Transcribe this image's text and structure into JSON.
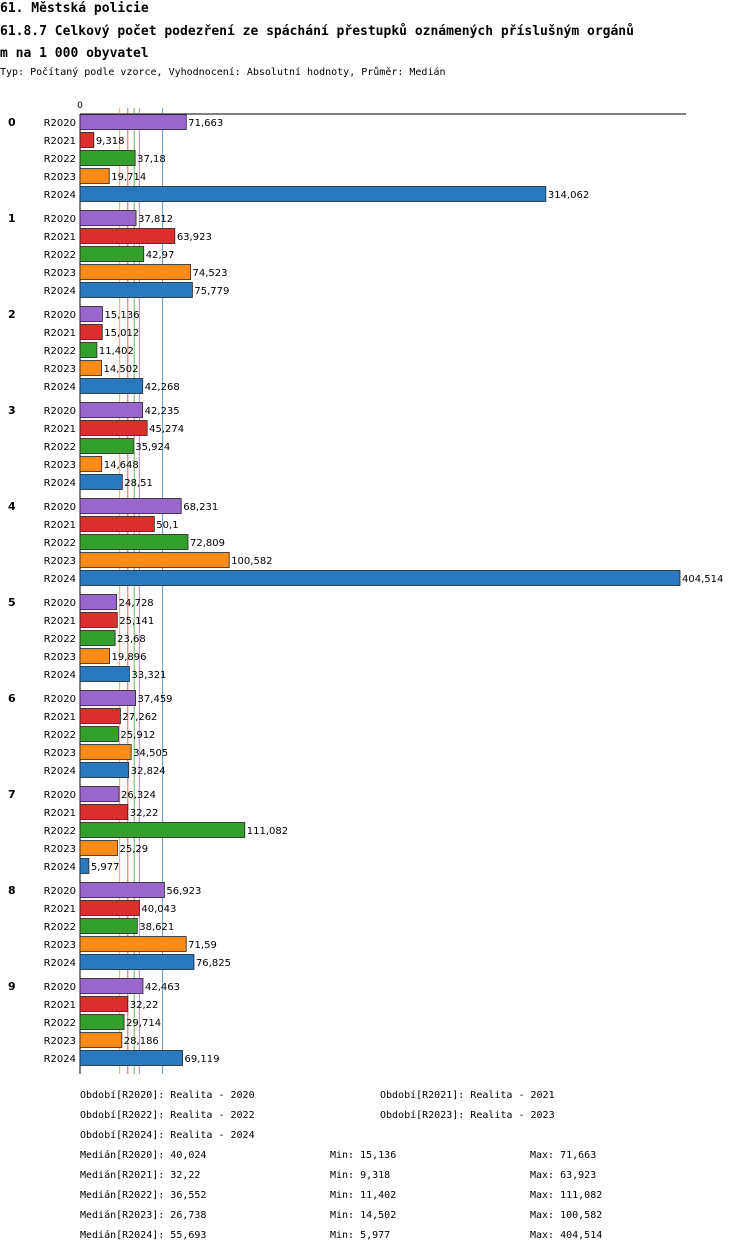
{
  "header": {
    "title": "61. Městská policie",
    "subtitle_line1": "61.8.7 Celkový počet podezření ze spáchání přestupků oznámených příslušným orgánů",
    "subtitle_line2": "m na 1 000 obyvatel",
    "type_line": "Typ: Počítaný podle vzorce, Vyhodnocení: Absolutní hodnoty, Průměr: Medián"
  },
  "chart_data": {
    "type": "bar",
    "orientation": "horizontal",
    "xlim": [
      0,
      404.514
    ],
    "x_tick_labels": [
      "0"
    ],
    "categories": [
      "0",
      "1",
      "2",
      "3",
      "4",
      "5",
      "6",
      "7",
      "8",
      "9"
    ],
    "series": [
      {
        "name": "R2020",
        "color": "#9966cc",
        "values": [
          71.663,
          37.812,
          15.136,
          42.235,
          68.231,
          24.728,
          37.459,
          26.324,
          56.923,
          42.463
        ],
        "labels": [
          "71,663",
          "37,812",
          "15,136",
          "42,235",
          "68,231",
          "24,728",
          "37,459",
          "26,324",
          "56,923",
          "42,463"
        ]
      },
      {
        "name": "R2021",
        "color": "#dd2e2e",
        "values": [
          9.318,
          63.923,
          15.012,
          45.274,
          50.1,
          25.141,
          27.262,
          32.22,
          40.043,
          32.22
        ],
        "labels": [
          "9,318",
          "63,923",
          "15,012",
          "45,274",
          "50,1",
          "25,141",
          "27,262",
          "32,22",
          "40,043",
          "32,22"
        ]
      },
      {
        "name": "R2022",
        "color": "#33a02c",
        "values": [
          37.18,
          42.97,
          11.402,
          35.924,
          72.809,
          23.68,
          25.912,
          111.082,
          38.621,
          29.714
        ],
        "labels": [
          "37,18",
          "42,97",
          "11,402",
          "35,924",
          "72,809",
          "23,68",
          "25,912",
          "111,082",
          "38,621",
          "29,714"
        ]
      },
      {
        "name": "R2023",
        "color": "#ff8c1a",
        "values": [
          19.714,
          74.523,
          14.502,
          14.648,
          100.582,
          19.896,
          34.505,
          25.29,
          71.59,
          28.186
        ],
        "labels": [
          "19,714",
          "74,523",
          "14,502",
          "14,648",
          "100,582",
          "19,896",
          "34,505",
          "25,29",
          "71,59",
          "28,186"
        ]
      },
      {
        "name": "R2024",
        "color": "#2a78bd",
        "values": [
          314.062,
          75.779,
          42.268,
          28.51,
          404.514,
          33.321,
          32.824,
          5.977,
          76.825,
          69.119
        ],
        "labels": [
          "314,062",
          "75,779",
          "42,268",
          "28,51",
          "404,514",
          "33,321",
          "32,824",
          "5,977",
          "76,825",
          "69,119"
        ]
      }
    ],
    "medians": [
      40.024,
      32.22,
      36.552,
      26.738,
      55.693
    ],
    "grid": false
  },
  "legend": {
    "periods": [
      "Období[R2020]: Realita - 2020",
      "Období[R2021]: Realita - 2021",
      "Období[R2022]: Realita - 2022",
      "Období[R2023]: Realita - 2023",
      "Období[R2024]: Realita - 2024"
    ],
    "stats": [
      {
        "median": "Medián[R2020]: 40,024",
        "min": "Min: 15,136",
        "max": "Max: 71,663"
      },
      {
        "median": "Medián[R2021]: 32,22",
        "min": "Min: 9,318",
        "max": "Max: 63,923"
      },
      {
        "median": "Medián[R2022]: 36,552",
        "min": "Min: 11,402",
        "max": "Max: 111,082"
      },
      {
        "median": "Medián[R2023]: 26,738",
        "min": "Min: 14,502",
        "max": "Max: 100,582"
      },
      {
        "median": "Medián[R2024]: 55,693",
        "min": "Min: 5,977",
        "max": "Max: 404,514"
      }
    ]
  }
}
